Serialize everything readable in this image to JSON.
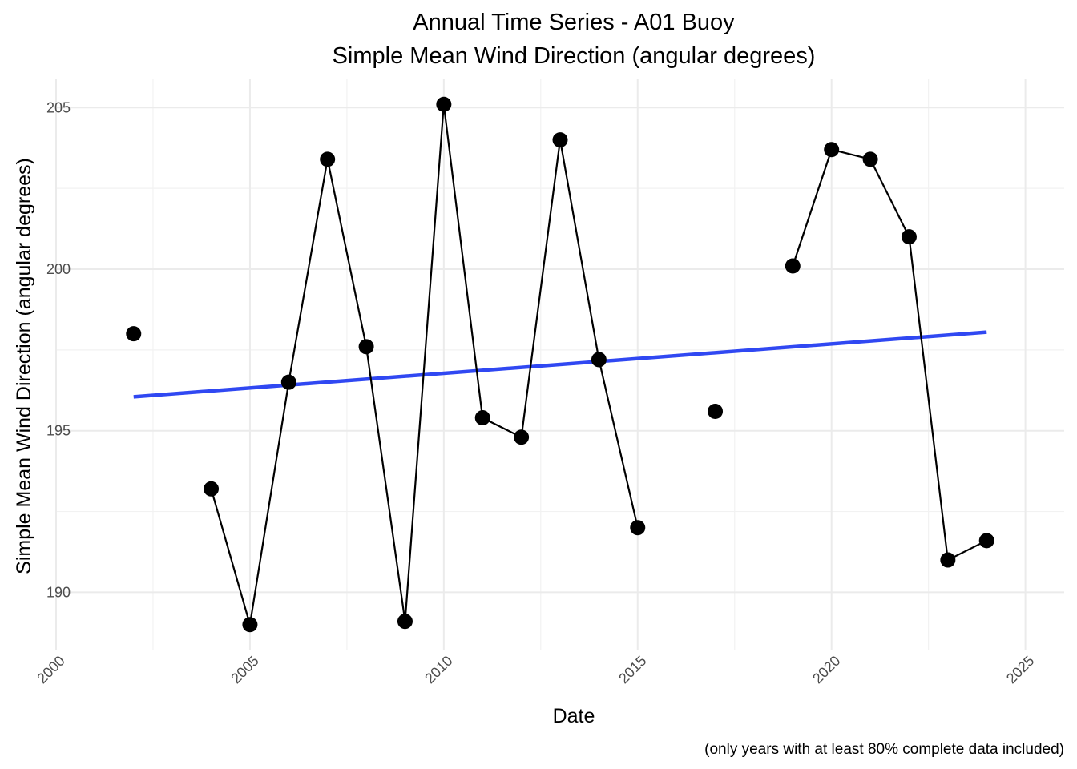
{
  "chart_data": {
    "type": "line",
    "title": "Annual Time Series - A01 Buoy",
    "subtitle": "Simple Mean Wind Direction (angular degrees)",
    "xlabel": "Date",
    "ylabel": "Simple Mean Wind Direction (angular degrees)",
    "caption": "(only years with at least 80% complete data included)",
    "xlim": [
      2000,
      2026
    ],
    "ylim": [
      188.2,
      205.9
    ],
    "x_ticks": [
      2000,
      2005,
      2010,
      2015,
      2020,
      2025
    ],
    "y_ticks": [
      190,
      195,
      200,
      205
    ],
    "grid": true,
    "series": [
      {
        "x": [
          2002,
          2004,
          2005,
          2006,
          2007,
          2008,
          2009,
          2010,
          2011,
          2012,
          2013,
          2014,
          2015,
          2017,
          2019,
          2020,
          2021,
          2022,
          2023,
          2024
        ],
        "values": [
          198.0,
          193.2,
          189.0,
          196.5,
          203.4,
          197.6,
          189.1,
          205.1,
          195.4,
          194.8,
          204.0,
          197.2,
          192.0,
          195.6,
          200.1,
          203.7,
          203.4,
          201.0,
          191.0,
          191.6
        ],
        "segments": [
          [
            2004,
            2005,
            2006,
            2007,
            2008,
            2009,
            2010,
            2011,
            2012,
            2013,
            2014,
            2015
          ],
          [
            2019,
            2020,
            2021,
            2022,
            2023,
            2024
          ]
        ],
        "color": "#000000"
      }
    ],
    "trend": {
      "x": [
        2002,
        2024
      ],
      "values": [
        196.05,
        198.05
      ],
      "color": "#3048f2"
    }
  }
}
